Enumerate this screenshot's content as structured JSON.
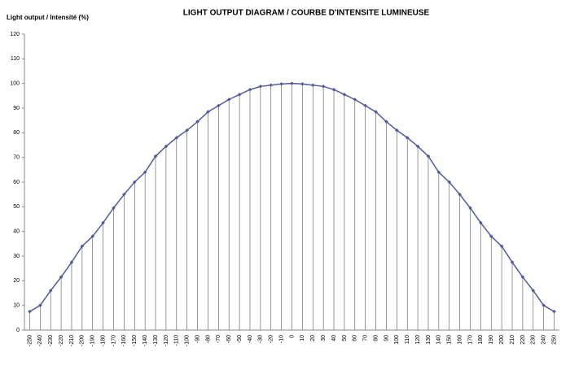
{
  "chart_data": {
    "type": "line",
    "title": "LIGHT OUTPUT DIAGRAM / COURBE D'INTENSITE LUMINEUSE",
    "y_label": "Light output / Intensité (%)",
    "categories": [
      "-250",
      "-240",
      "-230",
      "-220",
      "-210",
      "-200",
      "-190",
      "-180",
      "-170",
      "-160",
      "-150",
      "-140",
      "-130",
      "-120",
      "-110",
      "-100",
      "-90",
      "-80",
      "-70",
      "-60",
      "-50",
      "-40",
      "-30",
      "-20",
      "-10",
      "0",
      "10",
      "20",
      "30",
      "40",
      "50",
      "60",
      "70",
      "80",
      "90",
      "100",
      "110",
      "120",
      "130",
      "140",
      "150",
      "160",
      "170",
      "180",
      "190",
      "200",
      "210",
      "220",
      "230",
      "240",
      "250"
    ],
    "values": [
      7.5,
      10,
      16,
      21.5,
      27.5,
      34,
      38,
      43.5,
      49.5,
      55,
      60,
      64,
      70.5,
      74.5,
      78,
      81,
      84.5,
      88.5,
      91,
      93.5,
      95.5,
      97.5,
      98.8,
      99.3,
      99.8,
      100,
      99.8,
      99.3,
      98.8,
      97.5,
      95.5,
      93.5,
      91,
      88.5,
      84.5,
      81,
      78,
      74.5,
      70.5,
      64,
      60,
      55,
      49.5,
      43.5,
      38,
      34,
      27.5,
      21.5,
      16,
      10,
      7.5
    ],
    "color": "#4f5b9c",
    "drop_lines": true,
    "ylim": [
      0,
      120
    ],
    "yticks": [
      0,
      10,
      20,
      30,
      40,
      50,
      60,
      70,
      80,
      90,
      100,
      110,
      120
    ]
  }
}
